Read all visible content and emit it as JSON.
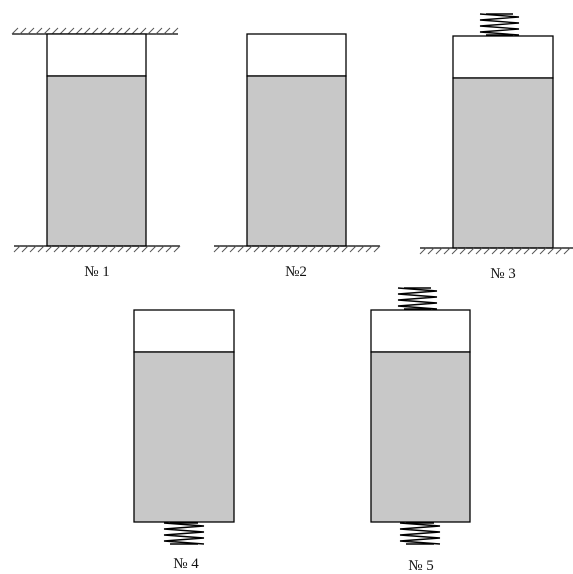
{
  "colors": {
    "fill": "#c8c8c8",
    "top": "#ffffff",
    "stroke": "#000000",
    "hatch": "#555555"
  },
  "figures": [
    {
      "label": "№ 1",
      "top_support": "wall",
      "bottom_support": "floor"
    },
    {
      "label": "№2",
      "top_support": "none",
      "bottom_support": "floor"
    },
    {
      "label": "№ 3",
      "top_support": "spring",
      "bottom_support": "floor"
    },
    {
      "label": "№ 4",
      "top_support": "none",
      "bottom_support": "spring"
    },
    {
      "label": "№ 5",
      "top_support": "spring",
      "bottom_support": "spring"
    }
  ]
}
